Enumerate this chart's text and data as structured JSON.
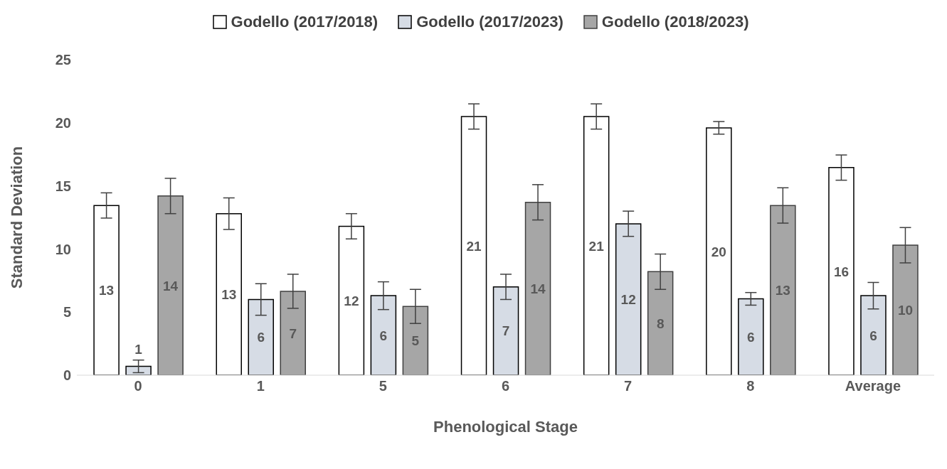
{
  "chart_data": {
    "type": "bar",
    "xlabel": "Phenological Stage",
    "ylabel": "Standard Deviation",
    "categories": [
      "0",
      "1",
      "5",
      "6",
      "7",
      "8",
      "Average"
    ],
    "series": [
      {
        "name": "Godello (2017/2018)",
        "color": "#ffffff",
        "values": [
          13.45,
          12.8,
          11.8,
          20.5,
          20.5,
          19.6,
          16.45
        ],
        "errors": [
          1.0,
          1.25,
          1.0,
          1.0,
          1.0,
          0.5,
          1.0
        ],
        "value_labels": [
          "13",
          "13",
          "12",
          "21",
          "21",
          "20",
          "16"
        ]
      },
      {
        "name": "Godello (2017/2023)",
        "color": "#d6dce5",
        "values": [
          0.7,
          6.0,
          6.3,
          7.0,
          12.0,
          6.05,
          6.3
        ],
        "errors": [
          0.5,
          1.25,
          1.1,
          1.0,
          1.0,
          0.5,
          1.05
        ],
        "value_labels": [
          "1",
          "6",
          "6",
          "7",
          "12",
          "6",
          "6"
        ]
      },
      {
        "name": "Godello (2018/2023)",
        "color": "#a6a6a6",
        "values": [
          14.2,
          6.65,
          5.45,
          13.7,
          8.2,
          13.45,
          10.3
        ],
        "errors": [
          1.4,
          1.35,
          1.35,
          1.4,
          1.4,
          1.4,
          1.4
        ],
        "value_labels": [
          "14",
          "7",
          "5",
          "14",
          "8",
          "13",
          "10"
        ]
      }
    ],
    "ylim": [
      0,
      25
    ],
    "yticks": [
      0,
      5,
      10,
      15,
      20,
      25
    ],
    "grid": false,
    "legend": "top"
  }
}
